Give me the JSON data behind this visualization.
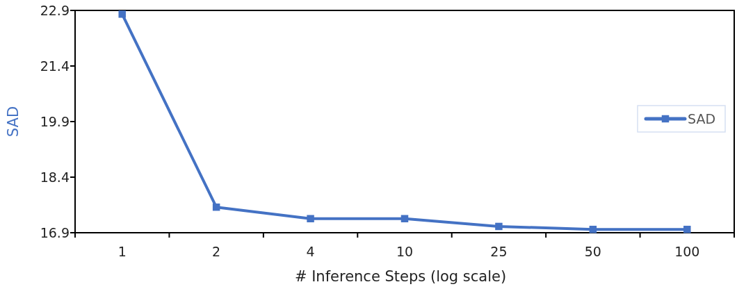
{
  "chart_data": {
    "type": "line",
    "xlabel": "# Inference Steps (log scale)",
    "ylabel": "SAD",
    "categories": [
      "1",
      "2",
      "4",
      "10",
      "25",
      "50",
      "100"
    ],
    "series": [
      {
        "name": "SAD",
        "color": "#4472c4",
        "values": [
          22.8,
          17.59,
          17.28,
          17.28,
          17.07,
          16.99,
          16.99
        ]
      }
    ],
    "ylim": [
      16.9,
      22.9
    ],
    "yticks": [
      16.9,
      18.4,
      19.9,
      21.4,
      22.9
    ],
    "grid": false,
    "legend": "right",
    "marker": "square",
    "line_style": "solid"
  }
}
